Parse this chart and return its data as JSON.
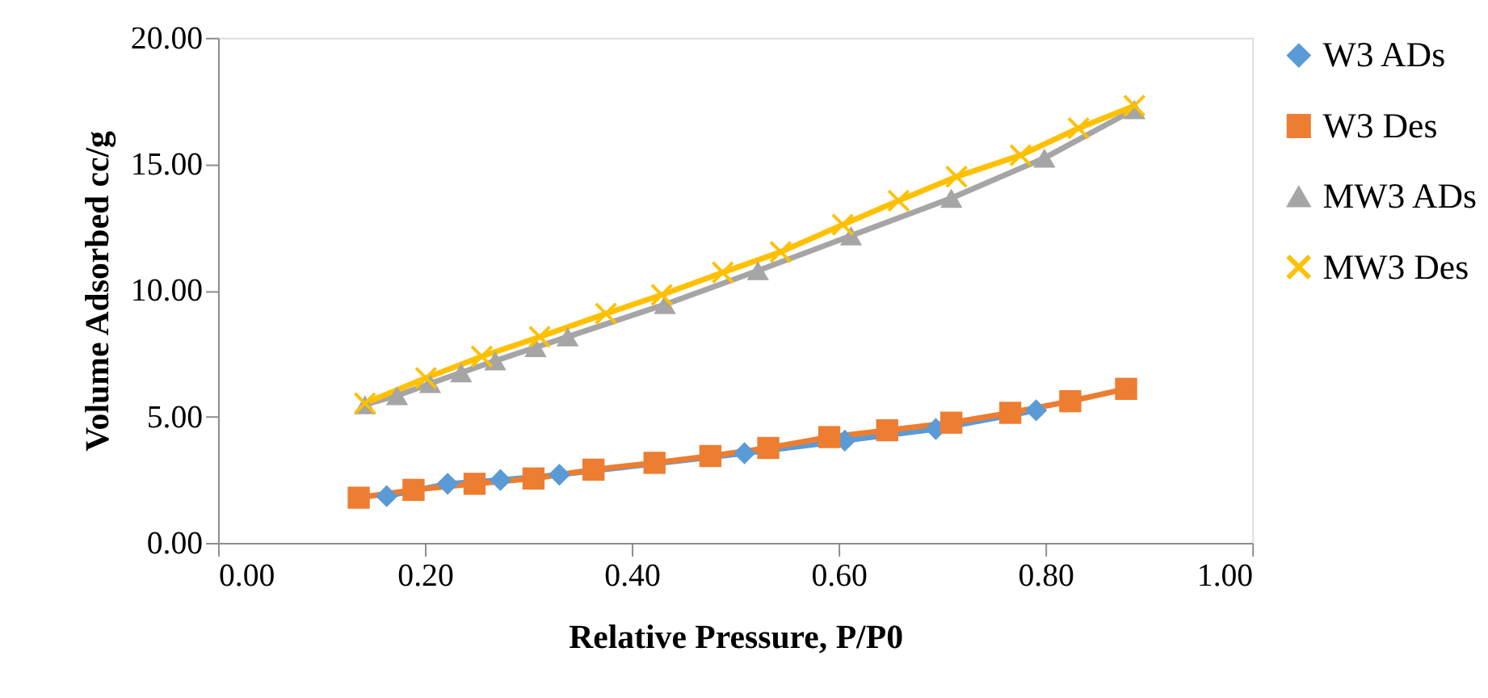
{
  "chart_data": {
    "type": "line",
    "xlabel": "Relative Pressure, P/P0",
    "ylabel": "Volume Adsorbed cc/g",
    "xlim": [
      0,
      1
    ],
    "ylim": [
      0,
      20
    ],
    "xticks": [
      {
        "value": 0,
        "label": "0.00"
      },
      {
        "value": 0.2,
        "label": "0.20"
      },
      {
        "value": 0.4,
        "label": "0.40"
      },
      {
        "value": 0.6,
        "label": "0.60"
      },
      {
        "value": 0.8,
        "label": "0.80"
      },
      {
        "value": 1,
        "label": "1.00"
      }
    ],
    "yticks": [
      {
        "value": 0,
        "label": "0.00"
      },
      {
        "value": 5,
        "label": "5.00"
      },
      {
        "value": 10,
        "label": "10.00"
      },
      {
        "value": 15,
        "label": "15.00"
      },
      {
        "value": 20,
        "label": "20.00"
      }
    ],
    "grid": false,
    "legend": "right",
    "line_style": "solid",
    "series": [
      {
        "name": "W3 ADs",
        "color": "#5b9bd5",
        "marker": "diamond",
        "x": [
          0.163,
          0.222,
          0.273,
          0.33,
          0.509,
          0.606,
          0.694,
          0.791
        ],
        "values": [
          1.85,
          2.34,
          2.49,
          2.7,
          3.55,
          4.05,
          4.51,
          5.25
        ]
      },
      {
        "name": "W3 Des",
        "color": "#ed7d31",
        "marker": "square",
        "x": [
          0.136,
          0.189,
          0.248,
          0.305,
          0.363,
          0.422,
          0.476,
          0.532,
          0.591,
          0.647,
          0.709,
          0.766,
          0.824,
          0.878
        ],
        "values": [
          1.79,
          2.1,
          2.34,
          2.55,
          2.9,
          3.17,
          3.44,
          3.76,
          4.19,
          4.46,
          4.76,
          5.15,
          5.61,
          6.1
        ]
      },
      {
        "name": "MW3 ADs",
        "color": "#a5a5a5",
        "marker": "triangle",
        "x": [
          0.142,
          0.173,
          0.205,
          0.235,
          0.268,
          0.307,
          0.338,
          0.432,
          0.522,
          0.612,
          0.709,
          0.799,
          0.886
        ],
        "values": [
          5.47,
          5.83,
          6.31,
          6.74,
          7.21,
          7.74,
          8.16,
          9.44,
          10.78,
          12.16,
          13.65,
          15.24,
          17.16
        ]
      },
      {
        "name": "MW3 Des",
        "color": "#ffc000",
        "marker": "cross",
        "x": [
          0.142,
          0.201,
          0.255,
          0.311,
          0.375,
          0.429,
          0.488,
          0.544,
          0.604,
          0.658,
          0.714,
          0.776,
          0.832,
          0.886
        ],
        "values": [
          5.53,
          6.53,
          7.38,
          8.16,
          9.08,
          9.82,
          10.71,
          11.52,
          12.6,
          13.55,
          14.5,
          15.35,
          16.42,
          17.31
        ]
      }
    ]
  }
}
